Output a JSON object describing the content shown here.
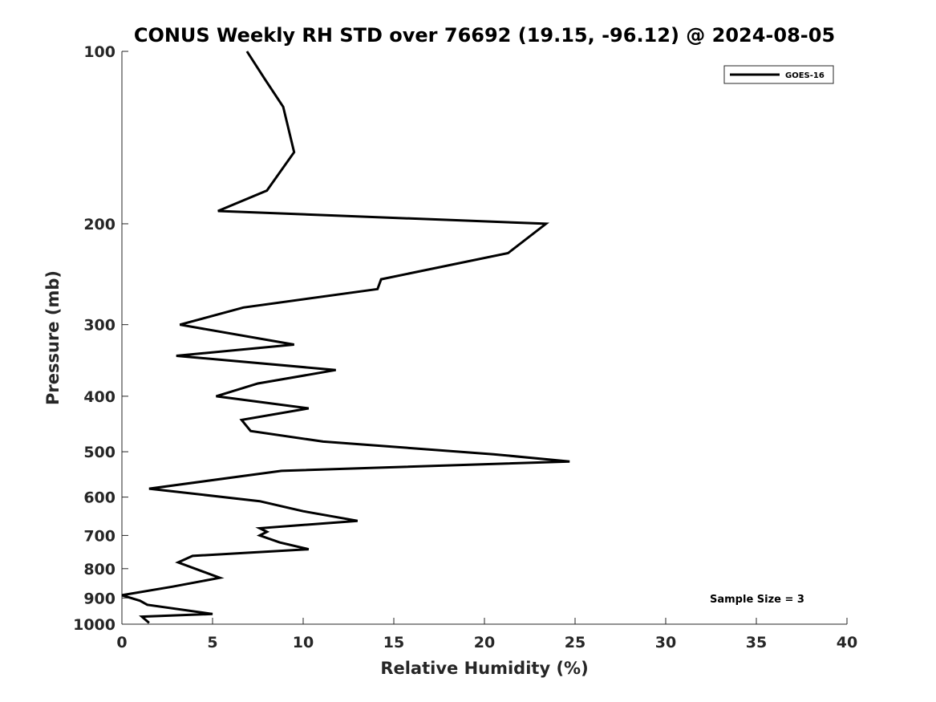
{
  "chart_data": {
    "type": "line",
    "title": "CONUS Weekly RH STD over 76692 (19.15, -96.12) @ 2024-08-05",
    "xlabel": "Relative Humidity (%)",
    "ylabel": "Pressure (mb)",
    "xlim": [
      0,
      40
    ],
    "ylim": [
      100,
      1000
    ],
    "y_scale": "log",
    "y_reversed": true,
    "x_ticks": [
      "0",
      "5",
      "10",
      "15",
      "20",
      "25",
      "30",
      "35",
      "40"
    ],
    "y_ticks": [
      "100",
      "200",
      "300",
      "400",
      "500",
      "600",
      "700",
      "800",
      "900",
      "1000"
    ],
    "grid": false,
    "legend_position": "top-right",
    "annotation": "Sample Size = 3",
    "series": [
      {
        "name": "GOES-16",
        "color": "#000000",
        "points": [
          [
            6.9,
            100
          ],
          [
            7.9,
            112
          ],
          [
            8.9,
            125
          ],
          [
            9.5,
            150
          ],
          [
            8.0,
            175
          ],
          [
            5.3,
            190
          ],
          [
            23.4,
            200
          ],
          [
            21.3,
            225
          ],
          [
            14.3,
            250
          ],
          [
            14.1,
            260
          ],
          [
            6.7,
            280
          ],
          [
            3.2,
            300
          ],
          [
            9.5,
            325
          ],
          [
            3.0,
            340
          ],
          [
            11.8,
            360
          ],
          [
            7.5,
            380
          ],
          [
            5.2,
            400
          ],
          [
            10.3,
            420
          ],
          [
            6.6,
            440
          ],
          [
            7.1,
            460
          ],
          [
            11.1,
            480
          ],
          [
            20.5,
            505
          ],
          [
            24.7,
            520
          ],
          [
            8.8,
            540
          ],
          [
            1.5,
            580
          ],
          [
            7.6,
            610
          ],
          [
            10.0,
            635
          ],
          [
            13.0,
            660
          ],
          [
            7.6,
            680
          ],
          [
            8.0,
            690
          ],
          [
            7.6,
            700
          ],
          [
            8.7,
            720
          ],
          [
            10.3,
            740
          ],
          [
            3.9,
            760
          ],
          [
            3.1,
            780
          ],
          [
            4.5,
            810
          ],
          [
            5.4,
            830
          ],
          [
            2.8,
            860
          ],
          [
            0.0,
            890
          ],
          [
            1.0,
            910
          ],
          [
            1.4,
            925
          ],
          [
            5.0,
            960
          ],
          [
            1.1,
            970
          ],
          [
            1.5,
            995
          ]
        ]
      }
    ]
  }
}
